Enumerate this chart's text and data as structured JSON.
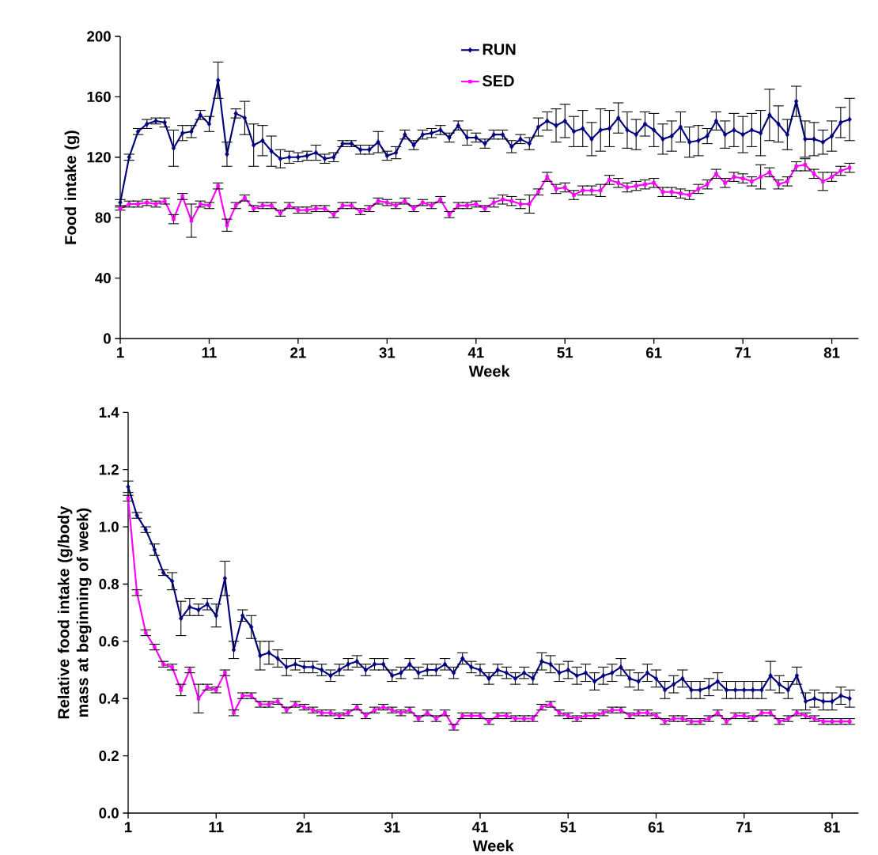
{
  "chart_data": [
    {
      "type": "line",
      "ylabel": "Food intake (g)",
      "xlabel": "Week",
      "legend": "top",
      "line_style": "solid",
      "x": [
        1,
        2,
        3,
        4,
        5,
        6,
        7,
        8,
        9,
        10,
        11,
        12,
        13,
        14,
        15,
        16,
        17,
        18,
        19,
        20,
        21,
        22,
        23,
        24,
        25,
        26,
        27,
        28,
        29,
        30,
        31,
        32,
        33,
        34,
        35,
        36,
        37,
        38,
        39,
        40,
        41,
        42,
        43,
        44,
        45,
        46,
        47,
        48,
        49,
        50,
        51,
        52,
        53,
        54,
        55,
        56,
        57,
        58,
        59,
        60,
        61,
        62,
        63,
        64,
        65,
        66,
        67,
        68,
        69,
        70,
        71,
        72,
        73,
        74,
        75,
        76,
        77,
        78,
        79,
        80,
        81,
        82,
        83
      ],
      "xlim": [
        1,
        84
      ],
      "xticks": [
        1,
        11,
        21,
        31,
        41,
        51,
        61,
        71,
        81
      ],
      "ylim": [
        0,
        200
      ],
      "yticks": [
        0,
        40,
        80,
        120,
        160,
        200
      ],
      "series": [
        {
          "name": "RUN",
          "color": "#000080",
          "marker": "diamond",
          "values": [
            90,
            120,
            137,
            142,
            144,
            143,
            126,
            136,
            137,
            148,
            142,
            171,
            122,
            149,
            146,
            128,
            131,
            124,
            119,
            120,
            120,
            121,
            123,
            119,
            120,
            129,
            129,
            125,
            125,
            130,
            121,
            123,
            135,
            128,
            135,
            136,
            138,
            133,
            141,
            133,
            133,
            129,
            135,
            135,
            127,
            132,
            129,
            140,
            144,
            141,
            144,
            137,
            139,
            132,
            138,
            139,
            146,
            138,
            135,
            142,
            138,
            132,
            134,
            140,
            130,
            131,
            134,
            144,
            135,
            138,
            135,
            138,
            136,
            148,
            142,
            135,
            157,
            132,
            132,
            130,
            134,
            143,
            145
          ],
          "errors": [
            2,
            2,
            2,
            3,
            2,
            3,
            12,
            5,
            4,
            3,
            5,
            12,
            8,
            3,
            11,
            14,
            10,
            10,
            6,
            4,
            3,
            3,
            5,
            3,
            3,
            2,
            2,
            3,
            3,
            7,
            3,
            4,
            3,
            3,
            3,
            3,
            3,
            3,
            3,
            5,
            3,
            3,
            3,
            3,
            4,
            3,
            4,
            6,
            6,
            11,
            11,
            10,
            12,
            11,
            14,
            12,
            10,
            12,
            10,
            8,
            11,
            10,
            10,
            10,
            10,
            10,
            5,
            6,
            9,
            11,
            12,
            11,
            15,
            17,
            12,
            10,
            10,
            12,
            11,
            8,
            10,
            10,
            14
          ]
        },
        {
          "name": "SED",
          "color": "#ff00ff",
          "marker": "square",
          "values": [
            86,
            89,
            89,
            90,
            89,
            91,
            79,
            94,
            78,
            89,
            88,
            101,
            75,
            88,
            93,
            86,
            88,
            88,
            83,
            88,
            85,
            85,
            86,
            86,
            82,
            88,
            88,
            84,
            86,
            91,
            90,
            88,
            91,
            86,
            90,
            88,
            92,
            82,
            88,
            88,
            89,
            86,
            90,
            92,
            91,
            89,
            89,
            97,
            107,
            99,
            100,
            95,
            98,
            98,
            98,
            105,
            103,
            100,
            101,
            102,
            103,
            97,
            97,
            96,
            95,
            99,
            102,
            109,
            103,
            107,
            106,
            104,
            107,
            110,
            102,
            104,
            114,
            115,
            109,
            104,
            107,
            111,
            113
          ],
          "errors": [
            1,
            2,
            2,
            2,
            2,
            2,
            3,
            2,
            11,
            2,
            2,
            2,
            4,
            2,
            2,
            2,
            2,
            2,
            2,
            2,
            2,
            2,
            2,
            2,
            2,
            2,
            2,
            2,
            2,
            2,
            2,
            2,
            2,
            2,
            2,
            2,
            2,
            2,
            2,
            2,
            2,
            2,
            3,
            3,
            3,
            3,
            6,
            2,
            3,
            3,
            3,
            3,
            3,
            3,
            4,
            3,
            3,
            3,
            3,
            3,
            3,
            3,
            3,
            3,
            3,
            3,
            3,
            3,
            3,
            3,
            3,
            3,
            8,
            3,
            3,
            3,
            3,
            4,
            3,
            6,
            3,
            3,
            3
          ]
        }
      ]
    },
    {
      "type": "line",
      "ylabel": "Relative food intake (g/body mass at beginning of week)",
      "xlabel": "Week",
      "line_style": "solid",
      "x": [
        1,
        2,
        3,
        4,
        5,
        6,
        7,
        8,
        9,
        10,
        11,
        12,
        13,
        14,
        15,
        16,
        17,
        18,
        19,
        20,
        21,
        22,
        23,
        24,
        25,
        26,
        27,
        28,
        29,
        30,
        31,
        32,
        33,
        34,
        35,
        36,
        37,
        38,
        39,
        40,
        41,
        42,
        43,
        44,
        45,
        46,
        47,
        48,
        49,
        50,
        51,
        52,
        53,
        54,
        55,
        56,
        57,
        58,
        59,
        60,
        61,
        62,
        63,
        64,
        65,
        66,
        67,
        68,
        69,
        70,
        71,
        72,
        73,
        74,
        75,
        76,
        77,
        78,
        79,
        80,
        81,
        82,
        83
      ],
      "xlim": [
        1,
        84
      ],
      "xticks": [
        1,
        11,
        21,
        31,
        41,
        51,
        61,
        71,
        81
      ],
      "ylim": [
        0,
        1.4
      ],
      "yticks": [
        {
          "value": 0,
          "label": "0.0"
        },
        {
          "value": 0.2,
          "label": "0.2"
        },
        {
          "value": 0.4,
          "label": "0.4"
        },
        {
          "value": 0.6,
          "label": "0.6"
        },
        {
          "value": 0.8,
          "label": "0.8"
        },
        {
          "value": 1.0,
          "label": "1.0"
        },
        {
          "value": 1.2,
          "label": "1.2"
        },
        {
          "value": 1.4,
          "label": "1.4"
        }
      ],
      "series": [
        {
          "color": "#000080",
          "marker": "diamond",
          "values": [
            1.14,
            1.04,
            0.99,
            0.92,
            0.84,
            0.81,
            0.68,
            0.72,
            0.71,
            0.73,
            0.69,
            0.82,
            0.57,
            0.69,
            0.65,
            0.55,
            0.56,
            0.54,
            0.51,
            0.52,
            0.51,
            0.51,
            0.5,
            0.48,
            0.5,
            0.52,
            0.53,
            0.5,
            0.52,
            0.52,
            0.48,
            0.49,
            0.52,
            0.49,
            0.5,
            0.5,
            0.52,
            0.49,
            0.54,
            0.51,
            0.5,
            0.47,
            0.5,
            0.49,
            0.47,
            0.49,
            0.47,
            0.53,
            0.52,
            0.49,
            0.5,
            0.48,
            0.49,
            0.46,
            0.48,
            0.49,
            0.51,
            0.47,
            0.46,
            0.49,
            0.47,
            0.43,
            0.45,
            0.47,
            0.43,
            0.43,
            0.44,
            0.46,
            0.43,
            0.43,
            0.43,
            0.43,
            0.43,
            0.48,
            0.45,
            0.43,
            0.48,
            0.39,
            0.4,
            0.39,
            0.39,
            0.41,
            0.4
          ],
          "errors": [
            0.02,
            0.01,
            0.01,
            0.02,
            0.01,
            0.03,
            0.06,
            0.03,
            0.02,
            0.02,
            0.04,
            0.06,
            0.03,
            0.02,
            0.04,
            0.05,
            0.04,
            0.03,
            0.03,
            0.02,
            0.02,
            0.02,
            0.02,
            0.02,
            0.02,
            0.02,
            0.02,
            0.02,
            0.02,
            0.02,
            0.02,
            0.02,
            0.02,
            0.02,
            0.02,
            0.02,
            0.02,
            0.02,
            0.02,
            0.02,
            0.02,
            0.02,
            0.02,
            0.02,
            0.02,
            0.02,
            0.02,
            0.03,
            0.03,
            0.03,
            0.03,
            0.03,
            0.03,
            0.03,
            0.03,
            0.03,
            0.03,
            0.03,
            0.03,
            0.03,
            0.03,
            0.03,
            0.03,
            0.03,
            0.03,
            0.03,
            0.03,
            0.03,
            0.03,
            0.03,
            0.03,
            0.03,
            0.03,
            0.05,
            0.03,
            0.03,
            0.03,
            0.03,
            0.03,
            0.03,
            0.03,
            0.03,
            0.03
          ]
        },
        {
          "color": "#ff00ff",
          "marker": "square",
          "values": [
            1.1,
            0.77,
            0.63,
            0.58,
            0.52,
            0.51,
            0.43,
            0.5,
            0.4,
            0.44,
            0.43,
            0.49,
            0.35,
            0.41,
            0.41,
            0.38,
            0.38,
            0.39,
            0.36,
            0.38,
            0.37,
            0.36,
            0.35,
            0.35,
            0.34,
            0.35,
            0.37,
            0.34,
            0.36,
            0.37,
            0.36,
            0.35,
            0.36,
            0.33,
            0.35,
            0.33,
            0.35,
            0.3,
            0.34,
            0.34,
            0.34,
            0.32,
            0.34,
            0.34,
            0.33,
            0.33,
            0.33,
            0.37,
            0.38,
            0.35,
            0.34,
            0.33,
            0.34,
            0.34,
            0.35,
            0.36,
            0.36,
            0.34,
            0.35,
            0.35,
            0.34,
            0.32,
            0.33,
            0.33,
            0.32,
            0.32,
            0.33,
            0.35,
            0.32,
            0.34,
            0.34,
            0.33,
            0.35,
            0.35,
            0.32,
            0.33,
            0.35,
            0.34,
            0.33,
            0.32,
            0.32,
            0.32,
            0.32
          ],
          "errors": [
            0.01,
            0.01,
            0.01,
            0.01,
            0.01,
            0.01,
            0.02,
            0.01,
            0.05,
            0.01,
            0.01,
            0.01,
            0.01,
            0.01,
            0.01,
            0.01,
            0.01,
            0.01,
            0.01,
            0.01,
            0.01,
            0.01,
            0.01,
            0.01,
            0.01,
            0.01,
            0.01,
            0.01,
            0.01,
            0.01,
            0.01,
            0.01,
            0.01,
            0.01,
            0.01,
            0.01,
            0.01,
            0.01,
            0.01,
            0.01,
            0.01,
            0.01,
            0.01,
            0.01,
            0.01,
            0.01,
            0.01,
            0.01,
            0.01,
            0.01,
            0.01,
            0.01,
            0.01,
            0.01,
            0.01,
            0.01,
            0.01,
            0.01,
            0.01,
            0.01,
            0.01,
            0.01,
            0.01,
            0.01,
            0.01,
            0.01,
            0.01,
            0.01,
            0.01,
            0.01,
            0.01,
            0.01,
            0.01,
            0.01,
            0.01,
            0.01,
            0.01,
            0.01,
            0.01,
            0.01,
            0.01,
            0.01,
            0.01
          ]
        }
      ]
    }
  ]
}
